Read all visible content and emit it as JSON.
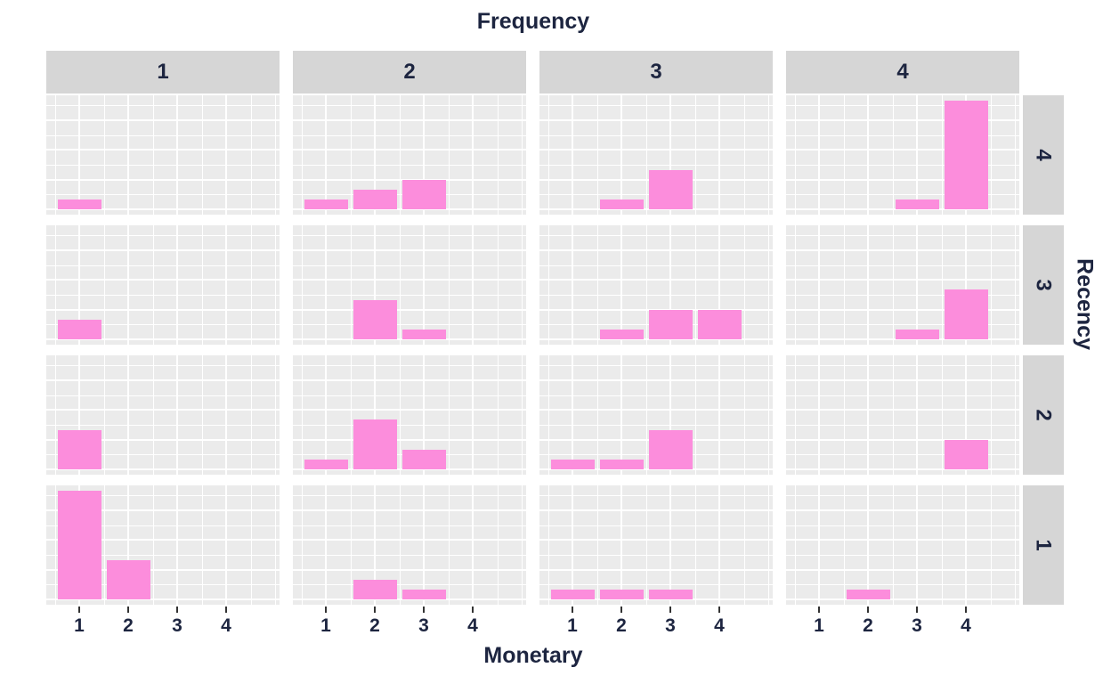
{
  "chart_data": {
    "type": "bar",
    "title": "Frequency",
    "xlabel": "Monetary",
    "row_facet_label": "Recency",
    "col_facets": [
      "1",
      "2",
      "3",
      "4"
    ],
    "row_facets": [
      "4",
      "3",
      "2",
      "1"
    ],
    "x_ticks": [
      "1",
      "2",
      "3",
      "4"
    ],
    "ylim": [
      0,
      12
    ],
    "grid": "on",
    "legend": "none",
    "colors": {
      "bar": "#FC8DDC",
      "panel_bg": "#EBEBEB",
      "strip_bg": "#D6D6D6",
      "gridline": "#FFFFFF",
      "text": "#1D2540",
      "tick_mark": "#333333"
    },
    "rows": [
      {
        "recency": "4",
        "counts_by_col": [
          [
            1,
            0,
            0,
            0
          ],
          [
            1,
            2,
            3,
            0
          ],
          [
            0,
            1,
            4,
            0
          ],
          [
            0,
            0,
            1,
            11
          ]
        ]
      },
      {
        "recency": "3",
        "counts_by_col": [
          [
            2,
            0,
            0,
            0
          ],
          [
            0,
            4,
            1,
            0
          ],
          [
            0,
            1,
            3,
            3
          ],
          [
            0,
            0,
            1,
            5
          ]
        ]
      },
      {
        "recency": "2",
        "counts_by_col": [
          [
            4,
            0,
            0,
            0
          ],
          [
            1,
            5,
            2,
            0
          ],
          [
            1,
            1,
            4,
            0
          ],
          [
            0,
            0,
            0,
            3
          ]
        ]
      },
      {
        "recency": "1",
        "counts_by_col": [
          [
            11,
            4,
            0,
            0
          ],
          [
            0,
            2,
            1,
            0
          ],
          [
            1,
            1,
            1,
            0
          ],
          [
            0,
            1,
            0,
            0
          ]
        ]
      }
    ]
  }
}
